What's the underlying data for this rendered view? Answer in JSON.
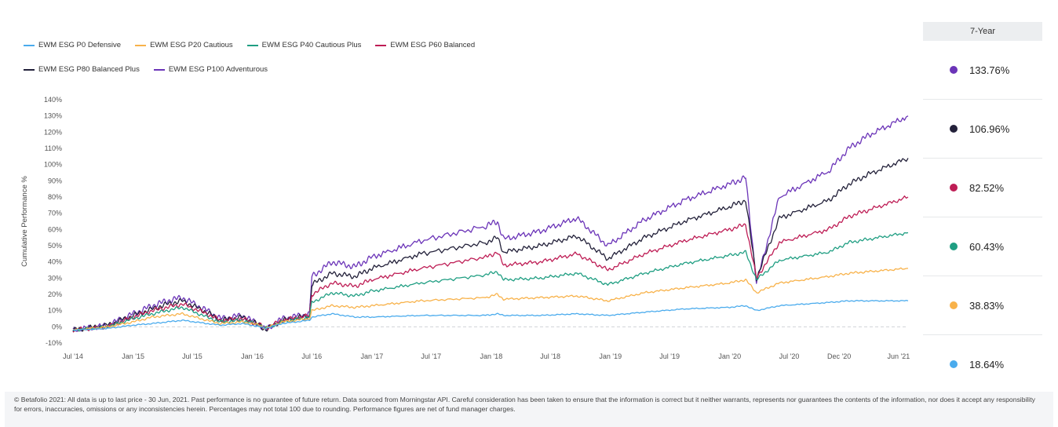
{
  "chart_data": {
    "type": "line",
    "ylabel": "Cumulative Performance %",
    "xlabel": "",
    "title": "",
    "ylim": [
      -10,
      140
    ],
    "y_ticks": [
      -10,
      0,
      10,
      20,
      30,
      40,
      50,
      60,
      70,
      80,
      90,
      100,
      110,
      120,
      130,
      140
    ],
    "y_tick_labels": [
      "-10%",
      "0%",
      "10%",
      "20%",
      "30%",
      "40%",
      "50%",
      "60%",
      "70%",
      "80%",
      "90%",
      "100%",
      "110%",
      "120%",
      "130%",
      "140%"
    ],
    "x_ticks": [
      "2014-07-01",
      "2015-01-01",
      "2015-07-01",
      "2016-01-01",
      "2016-07-01",
      "2017-01-01",
      "2017-07-01",
      "2018-01-01",
      "2018-07-01",
      "2019-01-01",
      "2019-07-01",
      "2020-01-01",
      "2020-07-01",
      "2020-12-01",
      "2021-06-01"
    ],
    "x_tick_labels": [
      "Jul '14",
      "Jan '15",
      "Jul '15",
      "Jan '16",
      "Jul '16",
      "Jan '17",
      "Jul '17",
      "Jan '18",
      "Jul '18",
      "Jan '19",
      "Jul '19",
      "Jan '20",
      "Jul '20",
      "Dec '20",
      "Jun '21"
    ],
    "x_range": [
      "2014-07-01",
      "2021-06-30"
    ],
    "grid": false,
    "zero_line": "dashed",
    "legend_position": "top-left",
    "dates": [
      "2014-07-01",
      "2014-10-15",
      "2015-01-01",
      "2015-03-01",
      "2015-04-15",
      "2015-06-01",
      "2015-08-15",
      "2015-09-25",
      "2015-12-01",
      "2016-01-25",
      "2016-02-10",
      "2016-04-01",
      "2016-06-24",
      "2016-07-01",
      "2016-09-01",
      "2016-11-10",
      "2017-01-01",
      "2017-06-01",
      "2017-12-15",
      "2018-01-20",
      "2018-02-08",
      "2018-06-01",
      "2018-09-20",
      "2018-12-24",
      "2019-04-15",
      "2019-08-15",
      "2019-12-31",
      "2020-02-19",
      "2020-03-23",
      "2020-06-01",
      "2020-10-30",
      "2020-12-31",
      "2021-03-01",
      "2021-06-30"
    ],
    "series": [
      {
        "name": "EWM ESG P0 Defensive",
        "color": "#4aabed",
        "values": [
          -2,
          -1,
          1,
          2,
          3,
          4,
          2,
          1,
          2,
          0,
          -1,
          2,
          4,
          6,
          8,
          6,
          6,
          7,
          7,
          8,
          7,
          7,
          8,
          7,
          9,
          11,
          12,
          13,
          10,
          13,
          15,
          16,
          16,
          16
        ]
      },
      {
        "name": "EWM ESG P20 Cautious",
        "color": "#f8b24a",
        "values": [
          -2,
          0,
          3,
          6,
          7,
          8,
          4,
          2,
          3,
          1,
          -1,
          3,
          5,
          10,
          13,
          12,
          13,
          16,
          18,
          20,
          17,
          18,
          19,
          16,
          21,
          24,
          27,
          29,
          21,
          27,
          31,
          33,
          34,
          36
        ]
      },
      {
        "name": "EWM ESG P40 Cautious Plus",
        "color": "#1f9e82",
        "values": [
          -2,
          0,
          5,
          8,
          10,
          12,
          6,
          3,
          4,
          1,
          -1,
          3,
          6,
          15,
          21,
          19,
          22,
          27,
          32,
          34,
          29,
          30,
          33,
          26,
          33,
          39,
          44,
          46,
          29,
          41,
          46,
          52,
          54,
          58
        ]
      },
      {
        "name": "EWM ESG P60 Balanced",
        "color": "#be1d55",
        "values": [
          -2,
          0,
          6,
          10,
          12,
          14,
          8,
          4,
          5,
          1,
          -1,
          4,
          7,
          20,
          27,
          25,
          29,
          36,
          43,
          46,
          38,
          40,
          45,
          35,
          45,
          53,
          60,
          63,
          30,
          52,
          60,
          68,
          72,
          80
        ]
      },
      {
        "name": "EWM ESG P80 Balanced Plus",
        "color": "#23213a",
        "values": [
          -2,
          1,
          7,
          11,
          14,
          16,
          9,
          4,
          6,
          1,
          -2,
          4,
          7,
          26,
          33,
          31,
          36,
          45,
          52,
          55,
          46,
          50,
          56,
          42,
          55,
          65,
          74,
          78,
          30,
          67,
          78,
          88,
          94,
          104
        ]
      },
      {
        "name": "EWM ESG P100 Adventurous",
        "color": "#6b34b8",
        "values": [
          -2,
          1,
          8,
          13,
          16,
          18,
          10,
          5,
          7,
          1,
          -2,
          5,
          8,
          31,
          40,
          37,
          43,
          53,
          62,
          65,
          54,
          59,
          67,
          50,
          66,
          78,
          88,
          92,
          27,
          80,
          96,
          110,
          118,
          130
        ]
      }
    ]
  },
  "performance_panel": {
    "header": "7-Year",
    "rows": [
      {
        "value": "133.76%",
        "color": "#6b34b8"
      },
      {
        "value": "106.96%",
        "color": "#23213a"
      },
      {
        "value": "82.52%",
        "color": "#be1d55"
      },
      {
        "value": "60.43%",
        "color": "#1f9e82"
      },
      {
        "value": "38.83%",
        "color": "#f8b24a"
      },
      {
        "value": "18.64%",
        "color": "#4aabed"
      }
    ]
  },
  "footer": {
    "disclaimer": "© Betafolio 2021: All data is up to last price - 30 Jun, 2021. Past performance is no guarantee of future return. Data sourced from Morningstar API. Careful consideration has been taken to ensure that the information is correct but it neither warrants, represents nor guarantees the contents of the information, nor does it accept any responsibility for errors, inaccuracies, omissions or any inconsistencies herein. Percentages may not total 100 due to rounding. Performance figures are net of fund manager charges."
  }
}
